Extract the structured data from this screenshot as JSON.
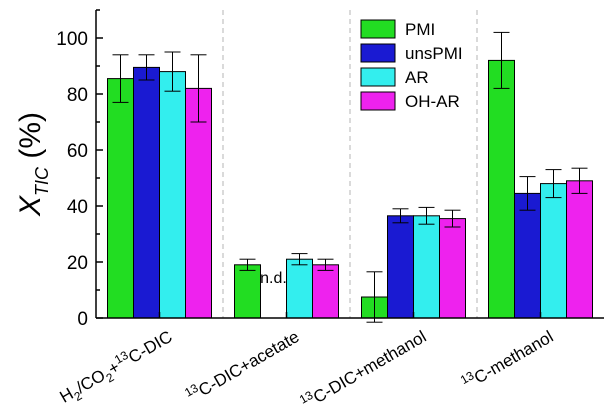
{
  "chart_data": {
    "type": "bar",
    "ylabel": "X",
    "ylabel_subscript": "TIC",
    "ylabel_unit": "(%)",
    "ylim": [
      0,
      110
    ],
    "yticks": [
      0,
      20,
      40,
      60,
      80,
      100
    ],
    "grid": false,
    "group_dividers": "dashed",
    "legend_position": "top-center",
    "categories": [
      {
        "parts": [
          [
            "H",
            "n"
          ],
          [
            "2",
            "sub"
          ],
          [
            "/CO",
            "n"
          ],
          [
            "2",
            "sub"
          ],
          [
            "+",
            "n"
          ],
          [
            "13",
            "sup"
          ],
          [
            "C-DIC",
            "n"
          ]
        ]
      },
      {
        "parts": [
          [
            "13",
            "sup"
          ],
          [
            "C-DIC+acetate",
            "n"
          ]
        ]
      },
      {
        "parts": [
          [
            "13",
            "sup"
          ],
          [
            "C-DIC+methanol",
            "n"
          ]
        ]
      },
      {
        "parts": [
          [
            "13",
            "sup"
          ],
          [
            "C-methanol",
            "n"
          ]
        ]
      }
    ],
    "series": [
      {
        "name": "PMI",
        "color": "#22dd22",
        "values": [
          85.5,
          19.0,
          7.5,
          92.0
        ],
        "errors": [
          8.5,
          2.0,
          9.0,
          10.0
        ]
      },
      {
        "name": "unsPMI",
        "color": "#1a1ad2",
        "values": [
          89.5,
          null,
          36.5,
          44.5
        ],
        "errors": [
          4.5,
          null,
          2.5,
          6.0
        ]
      },
      {
        "name": "AR",
        "color": "#33eeee",
        "values": [
          88.0,
          21.0,
          36.5,
          48.0
        ],
        "errors": [
          7.0,
          2.0,
          3.0,
          5.0
        ]
      },
      {
        "name": "OH-AR",
        "color": "#ee22ee",
        "values": [
          82.0,
          19.0,
          35.5,
          49.0
        ],
        "errors": [
          12.0,
          2.0,
          3.0,
          4.5
        ]
      }
    ],
    "annotations": [
      {
        "text": "n.d.",
        "category_index": 1,
        "series_index": 1
      }
    ]
  }
}
